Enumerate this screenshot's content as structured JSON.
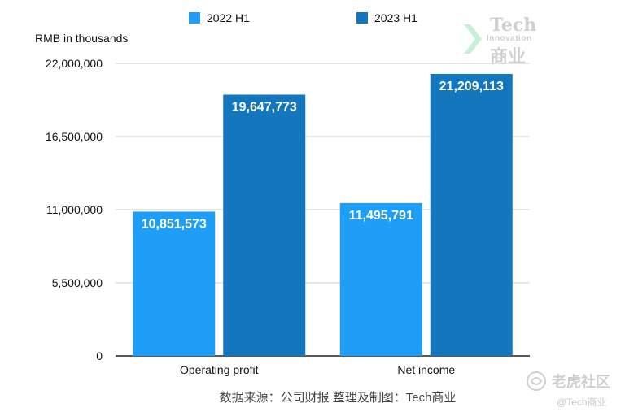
{
  "chart_data": {
    "type": "bar",
    "categories": [
      "Operating profit",
      "Net income"
    ],
    "series": [
      {
        "name": "2022 H1",
        "values": [
          10851573,
          11495791
        ],
        "labels": [
          "10,851,573",
          "11,495,791"
        ],
        "color": "#1e9ef7"
      },
      {
        "name": "2023 H1",
        "values": [
          19647773,
          21209113
        ],
        "labels": [
          "19,647,773",
          "21,209,113"
        ],
        "color": "#1477bd"
      }
    ],
    "ylabel": "RMB in thousands",
    "ylim": [
      0,
      22000000
    ],
    "yticks": [
      0,
      5500000,
      11000000,
      16500000,
      22000000
    ],
    "ytick_labels": [
      "0",
      "5,500,000",
      "11,000,000",
      "16,500,000",
      "22,000,000"
    ],
    "grid": true,
    "legend": "top-center"
  },
  "source_text": "数据来源：公司财报 整理及制图：Tech商业",
  "watermarks": {
    "top_right": {
      "line1": "Tech",
      "line2": "Innovation",
      "line3": "商业"
    },
    "bottom_right": {
      "title": "老虎社区",
      "handle": "@Tech商业"
    }
  }
}
